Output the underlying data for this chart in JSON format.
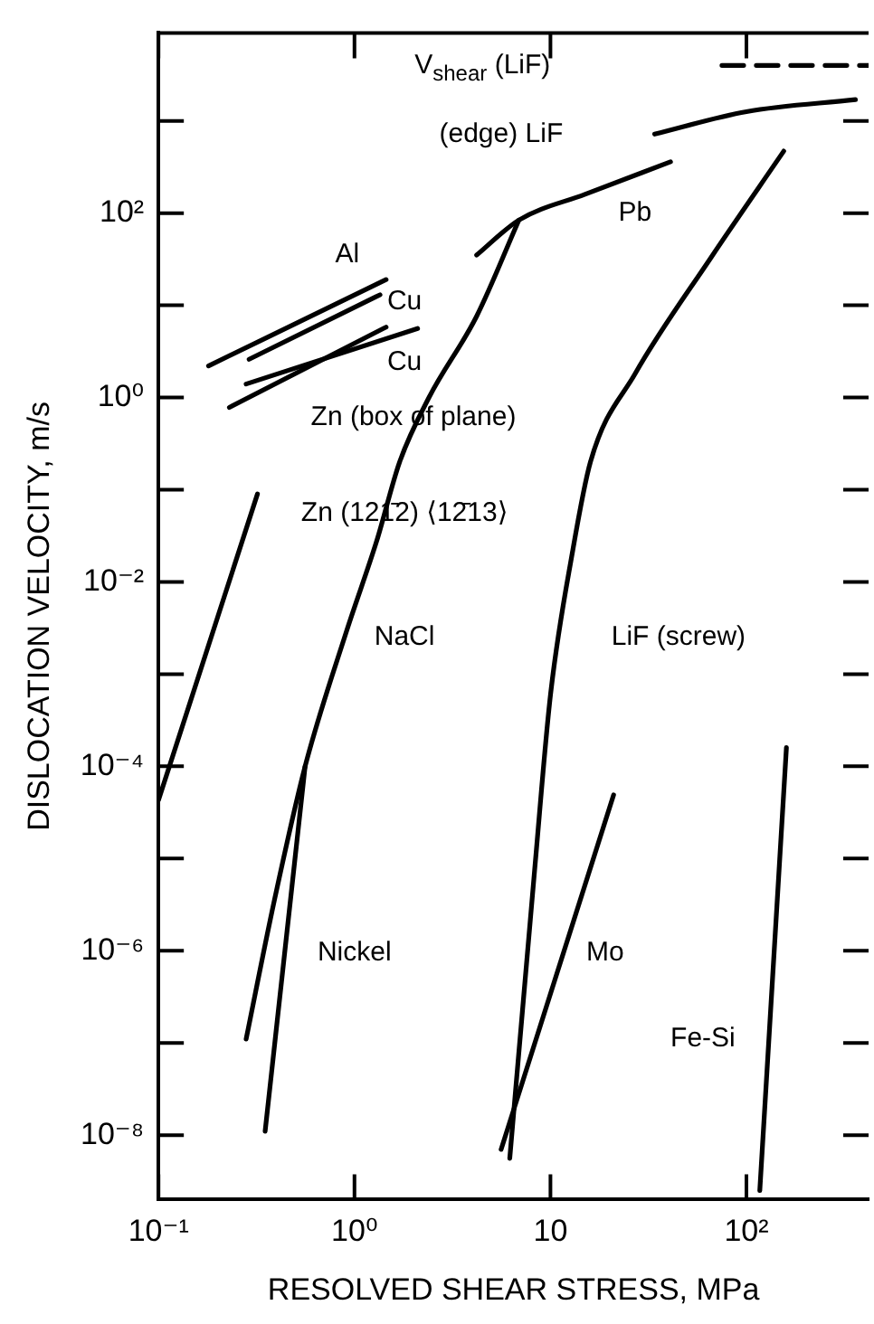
{
  "chart_data": {
    "type": "line",
    "xlabel": "RESOLVED SHEAR STRESS, MPa",
    "ylabel": "DISLOCATION VELOCITY, m/s",
    "log": "xy",
    "grid": false,
    "legend": false,
    "marker": "none",
    "line_style": "solid",
    "xlim": [
      0.1,
      420
    ],
    "ylim": [
      2e-09,
      9000
    ],
    "xticks": [
      {
        "value": 0.1,
        "label": "10⁻¹"
      },
      {
        "value": 1,
        "label": "10⁰"
      },
      10,
      {
        "value": 100,
        "label": "10²"
      }
    ],
    "yticks": [
      {
        "value": 1e-08,
        "label": "10⁻⁸"
      },
      {
        "value": 1e-07,
        "label": null
      },
      {
        "value": 1e-06,
        "label": "10⁻⁶"
      },
      {
        "value": 1e-05,
        "label": null
      },
      {
        "value": 0.0001,
        "label": "10⁻⁴"
      },
      {
        "value": 0.001,
        "label": null
      },
      {
        "value": 0.01,
        "label": "10⁻²"
      },
      {
        "value": 0.1,
        "label": null
      },
      {
        "value": 1,
        "label": "10⁰"
      },
      {
        "value": 10,
        "label": null
      },
      {
        "value": 100,
        "label": "10²"
      },
      {
        "value": 1000,
        "label": null
      }
    ],
    "series": [
      {
        "color": "#000000",
        "line_style": "dashed",
        "x": [
          75,
          420
        ],
        "values": [
          4000,
          4000
        ]
      },
      {
        "color": "#000000",
        "x": [
          34,
          100,
          360
        ],
        "values": [
          720,
          1260,
          1700
        ]
      },
      {
        "color": "#000000",
        "x": [
          4.2,
          6.9,
          15,
          41
        ],
        "values": [
          35,
          84,
          160,
          360
        ]
      },
      {
        "color": "#000000",
        "x": [
          0.28,
          0.39,
          0.56,
          0.91,
          1.3,
          1.7,
          2.4,
          4.2,
          6.9
        ],
        "values": [
          1.1e-07,
          3.5e-06,
          0.0001,
          0.0029,
          0.028,
          0.2,
          1.0,
          7.6,
          84
        ]
      },
      {
        "color": "#000000",
        "x": [
          0.35,
          0.56
        ],
        "values": [
          1.1e-08,
          0.0001
        ]
      },
      {
        "color": "#000000",
        "x": [
          6.2,
          8.3,
          10,
          13,
          16,
          27,
          66,
          155
        ],
        "values": [
          5.6e-09,
          7.4e-06,
          0.00059,
          0.022,
          0.2,
          1.8,
          33,
          470
        ]
      },
      {
        "color": "#000000",
        "x": [
          5.6,
          21
        ],
        "values": [
          7e-09,
          4.9e-05
        ]
      },
      {
        "color": "#000000",
        "x": [
          117,
          160
        ],
        "values": [
          2.5e-09,
          0.00016
        ]
      },
      {
        "color": "#000000",
        "x": [
          0.1,
          0.32
        ],
        "values": [
          4.3e-05,
          0.09
        ]
      },
      {
        "color": "#000000",
        "x": [
          0.18,
          1.45
        ],
        "values": [
          2.2,
          19
        ]
      },
      {
        "color": "#000000",
        "x": [
          0.29,
          1.35
        ],
        "values": [
          2.6,
          13
        ]
      },
      {
        "color": "#000000",
        "x": [
          0.28,
          2.1
        ],
        "values": [
          1.4,
          5.6
        ]
      },
      {
        "color": "#000000",
        "x": [
          0.23,
          1.45
        ],
        "values": [
          0.78,
          5.8
        ]
      }
    ],
    "annotations": [
      "V$_{shear}$ (LiF)",
      "(edge) LiF",
      "Pb",
      "Al",
      "Cu",
      "Cu",
      "Zn (box of plane)",
      "Zn (121̄2) ⟨12̄13⟩",
      "NaCl",
      "LiF (screw)",
      "Nickel",
      "Mo",
      "Fe-Si"
    ]
  }
}
